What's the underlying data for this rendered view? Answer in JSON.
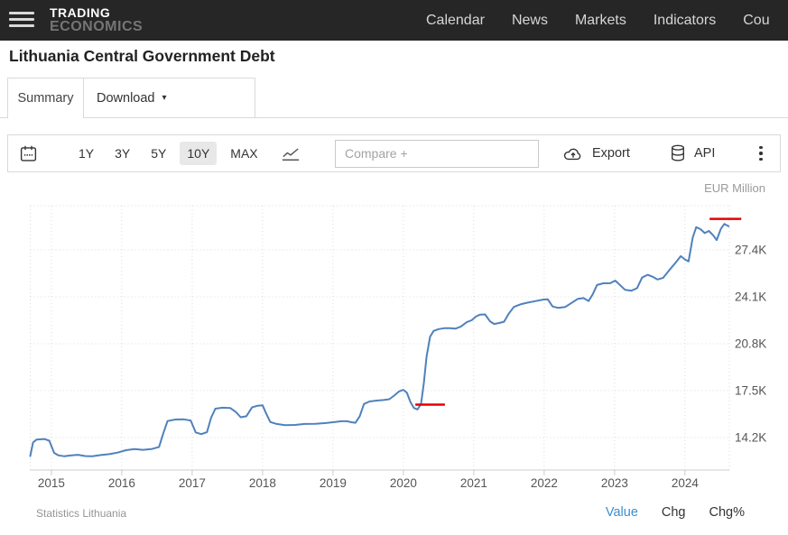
{
  "topbar": {
    "logo": {
      "line1": "TRADING",
      "line2": "ECONOMICS"
    },
    "nav": [
      "Calendar",
      "News",
      "Markets",
      "Indicators",
      "Cou"
    ]
  },
  "page_title": "Lithuania Central Government Debt",
  "tabs": {
    "summary": "Summary",
    "download": "Download",
    "caret": "▾"
  },
  "toolbar": {
    "ranges": [
      "1Y",
      "3Y",
      "5Y",
      "10Y",
      "MAX"
    ],
    "active_range": "10Y",
    "compare_placeholder": "Compare +",
    "export_label": "Export",
    "api_label": "API"
  },
  "chart_data": {
    "type": "line",
    "title": "Lithuania Central Government Debt",
    "unit_label": "EUR Million",
    "xlim": [
      2014.7,
      2024.63
    ],
    "ylim": [
      11916,
      30510
    ],
    "grid": "dotted",
    "x_ticks": [
      2015,
      2016,
      2017,
      2018,
      2019,
      2020,
      2021,
      2022,
      2023,
      2024
    ],
    "y_ticks": [
      {
        "value": 27400,
        "label": "27.4K"
      },
      {
        "value": 24100,
        "label": "24.1K"
      },
      {
        "value": 20800,
        "label": "20.8K"
      },
      {
        "value": 17500,
        "label": "17.5K"
      },
      {
        "value": 14200,
        "label": "14.2K"
      }
    ],
    "series": [
      {
        "name": "Central Government Debt",
        "color": "#4f81bd",
        "points": [
          [
            2014.7,
            12900
          ],
          [
            2014.74,
            13850
          ],
          [
            2014.79,
            14060
          ],
          [
            2014.9,
            14100
          ],
          [
            2014.97,
            13980
          ],
          [
            2015.04,
            13120
          ],
          [
            2015.1,
            12950
          ],
          [
            2015.18,
            12890
          ],
          [
            2015.28,
            12950
          ],
          [
            2015.38,
            12990
          ],
          [
            2015.48,
            12900
          ],
          [
            2015.58,
            12880
          ],
          [
            2015.7,
            12970
          ],
          [
            2015.82,
            13030
          ],
          [
            2015.94,
            13140
          ],
          [
            2016.06,
            13310
          ],
          [
            2016.18,
            13390
          ],
          [
            2016.3,
            13340
          ],
          [
            2016.42,
            13390
          ],
          [
            2016.53,
            13540
          ],
          [
            2016.59,
            14500
          ],
          [
            2016.65,
            15360
          ],
          [
            2016.76,
            15470
          ],
          [
            2016.88,
            15480
          ],
          [
            2016.98,
            15400
          ],
          [
            2017.05,
            14560
          ],
          [
            2017.13,
            14440
          ],
          [
            2017.21,
            14580
          ],
          [
            2017.27,
            15600
          ],
          [
            2017.33,
            16230
          ],
          [
            2017.43,
            16300
          ],
          [
            2017.54,
            16280
          ],
          [
            2017.62,
            16000
          ],
          [
            2017.69,
            15630
          ],
          [
            2017.77,
            15700
          ],
          [
            2017.85,
            16320
          ],
          [
            2017.93,
            16440
          ],
          [
            2018.0,
            16470
          ],
          [
            2018.05,
            15900
          ],
          [
            2018.11,
            15290
          ],
          [
            2018.2,
            15160
          ],
          [
            2018.32,
            15070
          ],
          [
            2018.46,
            15090
          ],
          [
            2018.6,
            15160
          ],
          [
            2018.75,
            15170
          ],
          [
            2018.9,
            15220
          ],
          [
            2019.03,
            15290
          ],
          [
            2019.12,
            15350
          ],
          [
            2019.2,
            15350
          ],
          [
            2019.26,
            15280
          ],
          [
            2019.32,
            15240
          ],
          [
            2019.38,
            15700
          ],
          [
            2019.44,
            16560
          ],
          [
            2019.52,
            16740
          ],
          [
            2019.62,
            16800
          ],
          [
            2019.72,
            16840
          ],
          [
            2019.8,
            16900
          ],
          [
            2019.87,
            17150
          ],
          [
            2019.94,
            17450
          ],
          [
            2020.0,
            17560
          ],
          [
            2020.05,
            17350
          ],
          [
            2020.1,
            16700
          ],
          [
            2020.15,
            16280
          ],
          [
            2020.2,
            16180
          ],
          [
            2020.25,
            16550
          ],
          [
            2020.29,
            18000
          ],
          [
            2020.33,
            19900
          ],
          [
            2020.38,
            21300
          ],
          [
            2020.43,
            21700
          ],
          [
            2020.5,
            21830
          ],
          [
            2020.58,
            21890
          ],
          [
            2020.66,
            21900
          ],
          [
            2020.74,
            21860
          ],
          [
            2020.82,
            22020
          ],
          [
            2020.9,
            22320
          ],
          [
            2020.97,
            22450
          ],
          [
            2021.03,
            22710
          ],
          [
            2021.09,
            22850
          ],
          [
            2021.16,
            22860
          ],
          [
            2021.23,
            22380
          ],
          [
            2021.29,
            22190
          ],
          [
            2021.36,
            22260
          ],
          [
            2021.43,
            22350
          ],
          [
            2021.5,
            22940
          ],
          [
            2021.57,
            23390
          ],
          [
            2021.66,
            23570
          ],
          [
            2021.76,
            23690
          ],
          [
            2021.88,
            23800
          ],
          [
            2021.99,
            23910
          ],
          [
            2022.05,
            23930
          ],
          [
            2022.12,
            23420
          ],
          [
            2022.2,
            23320
          ],
          [
            2022.3,
            23390
          ],
          [
            2022.4,
            23710
          ],
          [
            2022.48,
            23960
          ],
          [
            2022.56,
            24010
          ],
          [
            2022.63,
            23800
          ],
          [
            2022.69,
            24280
          ],
          [
            2022.75,
            24930
          ],
          [
            2022.84,
            25050
          ],
          [
            2022.94,
            25060
          ],
          [
            2023.01,
            25240
          ],
          [
            2023.08,
            24910
          ],
          [
            2023.15,
            24590
          ],
          [
            2023.24,
            24530
          ],
          [
            2023.32,
            24710
          ],
          [
            2023.39,
            25450
          ],
          [
            2023.47,
            25650
          ],
          [
            2023.55,
            25490
          ],
          [
            2023.61,
            25320
          ],
          [
            2023.69,
            25440
          ],
          [
            2023.78,
            25990
          ],
          [
            2023.87,
            26520
          ],
          [
            2023.94,
            26960
          ],
          [
            2024.0,
            26730
          ],
          [
            2024.05,
            26590
          ],
          [
            2024.11,
            28250
          ],
          [
            2024.16,
            29000
          ],
          [
            2024.22,
            28860
          ],
          [
            2024.28,
            28590
          ],
          [
            2024.34,
            28730
          ],
          [
            2024.4,
            28430
          ],
          [
            2024.45,
            28090
          ],
          [
            2024.51,
            28880
          ],
          [
            2024.56,
            29230
          ],
          [
            2024.62,
            29060
          ]
        ]
      }
    ],
    "annotations": [
      {
        "type": "segment",
        "color": "#e60000",
        "x1": 2020.17,
        "x2": 2020.59,
        "value": 16520
      },
      {
        "type": "segment",
        "color": "#e60000",
        "x1": 2024.35,
        "x2": 2024.8,
        "value": 29580
      }
    ]
  },
  "footer": {
    "source": "Statistics Lithuania",
    "views": [
      "Value",
      "Chg",
      "Chg%"
    ],
    "active_view": "Value"
  },
  "colors": {
    "line": "#4f81bd",
    "annotation": "#e60000",
    "active_view": "#3d8fd1",
    "topbar_bg": "#262626"
  }
}
